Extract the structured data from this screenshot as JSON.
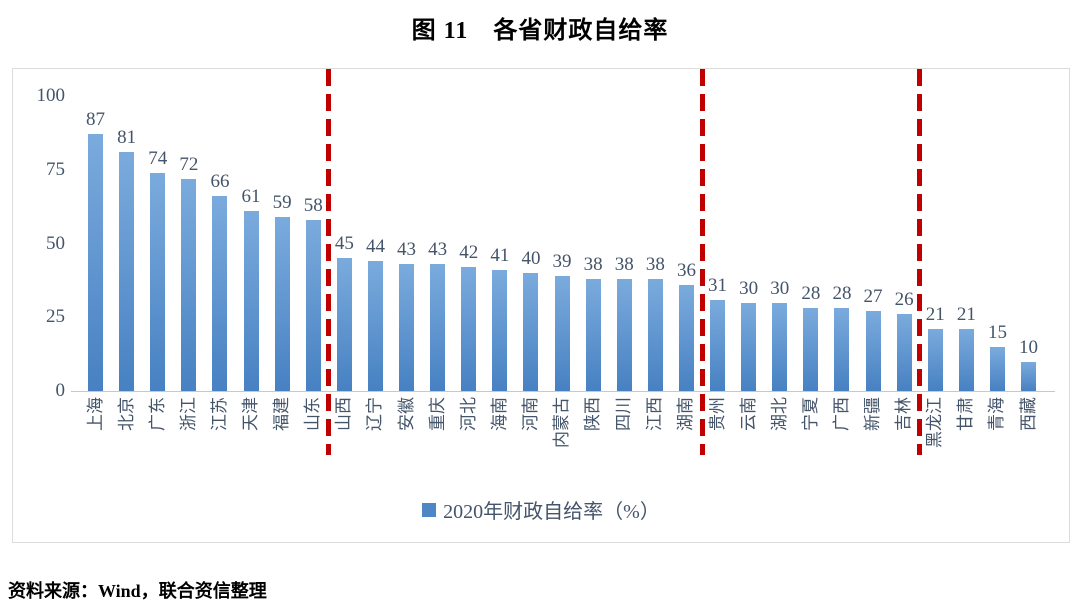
{
  "page": {
    "title": "图 11　各省财政自给率",
    "source_note": "资料来源：Wind，联合资信整理"
  },
  "legend": {
    "label": "2020年财政自给率（%）",
    "marker_color": "#4E86C6"
  },
  "colors": {
    "bar_gradient_top": "#7BABDD",
    "bar_gradient_bottom": "#4781C2",
    "divider_red": "#C00000",
    "text_label": "#44546A",
    "axis_line": "#C8C8C8",
    "chart_border": "#DCDCDC"
  },
  "chart_data": {
    "type": "bar",
    "title": "图 11　各省财政自给率",
    "xlabel": "",
    "ylabel": "",
    "ylim": [
      0,
      100
    ],
    "yticks": [
      0,
      25,
      50,
      75,
      100
    ],
    "grid": false,
    "legend": [
      "2020年财政自给率（%）"
    ],
    "legend_position": "bottom",
    "categories": [
      "上海",
      "北京",
      "广东",
      "浙江",
      "江苏",
      "天津",
      "福建",
      "山东",
      "山西",
      "辽宁",
      "安徽",
      "重庆",
      "河北",
      "海南",
      "河南",
      "内蒙古",
      "陕西",
      "四川",
      "江西",
      "湖南",
      "贵州",
      "云南",
      "湖北",
      "宁夏",
      "广西",
      "新疆",
      "吉林",
      "黑龙江",
      "甘肃",
      "青海",
      "西藏"
    ],
    "values": [
      87,
      81,
      74,
      72,
      66,
      61,
      59,
      58,
      45,
      44,
      43,
      43,
      42,
      41,
      40,
      39,
      38,
      38,
      38,
      36,
      31,
      30,
      30,
      28,
      28,
      27,
      26,
      21,
      21,
      15,
      10
    ],
    "group_dividers_after_index": [
      7,
      19,
      26
    ],
    "divider_style": "dashed-red-vertical"
  }
}
